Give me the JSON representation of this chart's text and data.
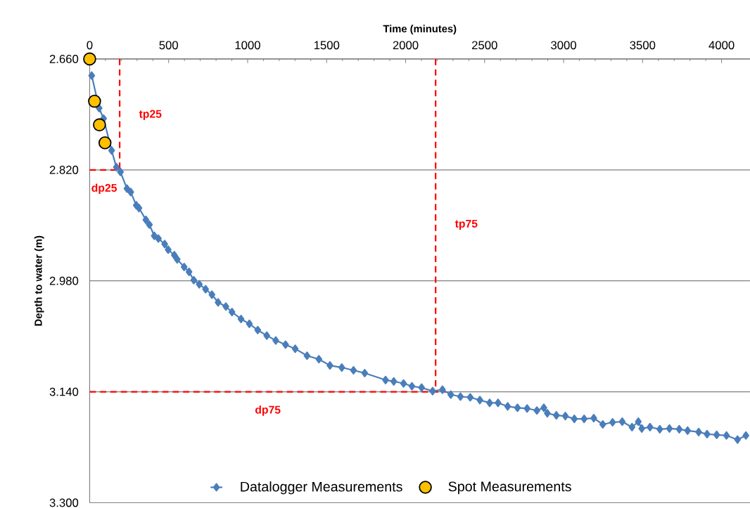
{
  "chart_data": {
    "type": "line",
    "xlabel": "Time (minutes)",
    "ylabel": "Depth to water (m)",
    "xlim": [
      0,
      4180
    ],
    "xticks": [
      0,
      500,
      1000,
      1500,
      2000,
      2500,
      3000,
      3500,
      4000
    ],
    "ylim": [
      3.3,
      2.66
    ],
    "yticks": [
      {
        "value": 2.66,
        "label": "2.660"
      },
      {
        "value": 2.82,
        "label": "2.820"
      },
      {
        "value": 2.98,
        "label": "2.980"
      },
      {
        "value": 3.14,
        "label": "3.140"
      },
      {
        "value": 3.3,
        "label": "3.300"
      }
    ],
    "grid": "y",
    "legend": "bottom",
    "series": [
      {
        "name": "Datalogger Measurements",
        "type": "line",
        "marker": "diamond",
        "color": "#4a7ebb",
        "x": [
          13,
          60,
          88,
          139,
          169,
          195,
          236,
          260,
          295,
          312,
          356,
          378,
          409,
          435,
          475,
          497,
          536,
          554,
          598,
          629,
          659,
          694,
          734,
          774,
          813,
          862,
          901,
          958,
          1011,
          1064,
          1121,
          1178,
          1240,
          1301,
          1376,
          1451,
          1521,
          1596,
          1670,
          1741,
          1873,
          1925,
          1987,
          2040,
          2101,
          2171,
          2233,
          2286,
          2347,
          2409,
          2470,
          2532,
          2585,
          2646,
          2708,
          2769,
          2831,
          2875,
          2897,
          2954,
          3011,
          3068,
          3130,
          3191,
          3248,
          3310,
          3371,
          3433,
          3473,
          3495,
          3547,
          3609,
          3670,
          3732,
          3785,
          3855,
          3908,
          3969,
          4031,
          4101,
          4154
        ],
        "values": [
          2.684,
          2.731,
          2.746,
          2.792,
          2.816,
          2.823,
          2.847,
          2.852,
          2.871,
          2.875,
          2.892,
          2.899,
          2.915,
          2.919,
          2.927,
          2.935,
          2.943,
          2.949,
          2.96,
          2.967,
          2.979,
          2.985,
          2.992,
          3.0,
          3.011,
          3.017,
          3.025,
          3.035,
          3.042,
          3.051,
          3.059,
          3.066,
          3.072,
          3.078,
          3.088,
          3.093,
          3.102,
          3.105,
          3.109,
          3.113,
          3.123,
          3.125,
          3.128,
          3.132,
          3.134,
          3.139,
          3.137,
          3.144,
          3.147,
          3.148,
          3.152,
          3.156,
          3.156,
          3.161,
          3.163,
          3.164,
          3.167,
          3.163,
          3.171,
          3.174,
          3.175,
          3.179,
          3.179,
          3.178,
          3.187,
          3.184,
          3.183,
          3.191,
          3.183,
          3.193,
          3.191,
          3.194,
          3.193,
          3.194,
          3.196,
          3.198,
          3.201,
          3.202,
          3.203,
          3.209,
          3.203
        ]
      },
      {
        "name": "Spot Measurements",
        "type": "scatter",
        "marker": "circle",
        "color": "#ffc000",
        "x": [
          0,
          31,
          62,
          97
        ],
        "values": [
          2.66,
          2.721,
          2.755,
          2.781
        ]
      }
    ],
    "ref_lines": [
      {
        "axis": "x",
        "value": 190,
        "label": "tp25",
        "color": "#ff0000",
        "line_style": "dashed"
      },
      {
        "axis": "y",
        "value": 2.82,
        "label": "dp25",
        "color": "#ff0000",
        "line_style": "dashed"
      },
      {
        "axis": "x",
        "value": 2190,
        "label": "tp75",
        "color": "#ff0000",
        "line_style": "dashed"
      },
      {
        "axis": "y",
        "value": 3.14,
        "label": "dp75",
        "color": "#ff0000",
        "line_style": "dashed"
      }
    ]
  }
}
